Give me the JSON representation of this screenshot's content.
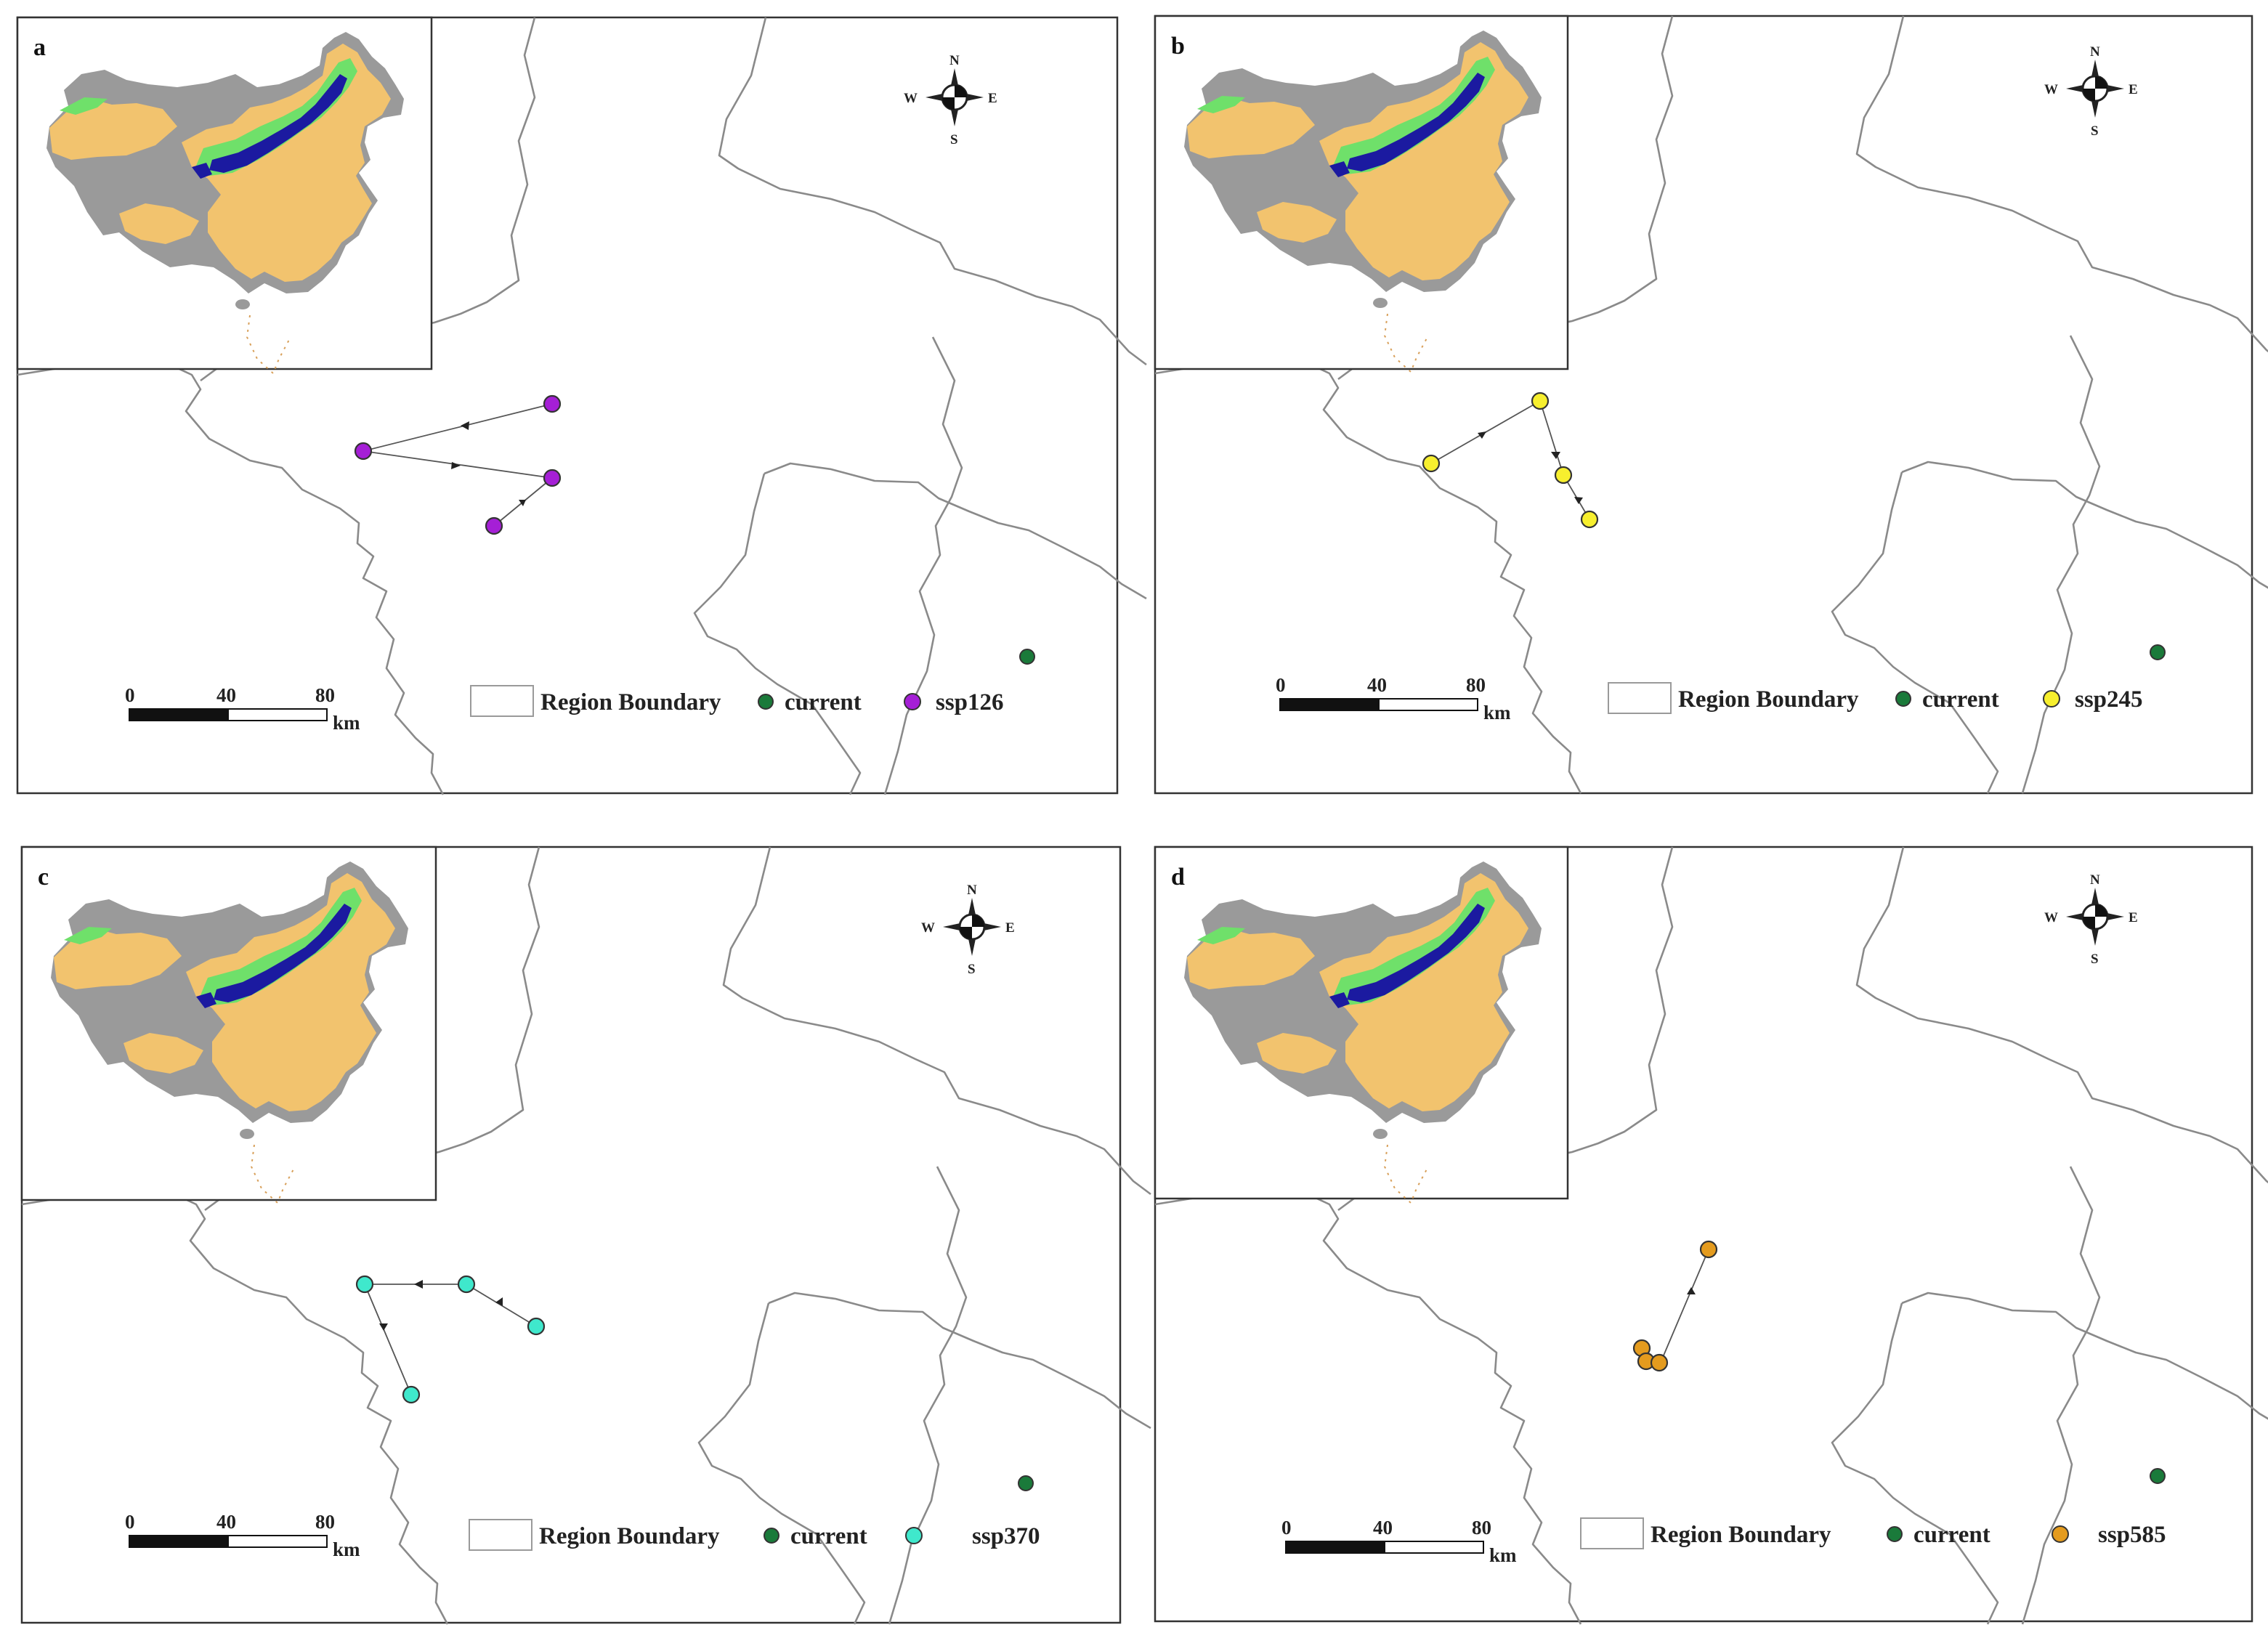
{
  "figure": {
    "panels": [
      {
        "id": "a",
        "letter": "a",
        "scenario_label": "ssp126",
        "scenario_color": "#a51fd6",
        "legend": {
          "boundary_label": "Region Boundary",
          "current_label": "current"
        },
        "scale": {
          "ticks": [
            "0",
            "40",
            "80"
          ],
          "unit": "km"
        },
        "compass": {
          "n": "N",
          "s": "S",
          "e": "E",
          "w": "W"
        }
      },
      {
        "id": "b",
        "letter": "b",
        "scenario_label": "ssp245",
        "scenario_color": "#f7ef2e",
        "legend": {
          "boundary_label": "Region Boundary",
          "current_label": "current"
        },
        "scale": {
          "ticks": [
            "0",
            "40",
            "80"
          ],
          "unit": "km"
        },
        "compass": {
          "n": "N",
          "s": "S",
          "e": "E",
          "w": "W"
        }
      },
      {
        "id": "c",
        "letter": "c",
        "scenario_label": "ssp370",
        "scenario_color": "#3fe8cc",
        "legend": {
          "boundary_label": "Region Boundary",
          "current_label": "current"
        },
        "scale": {
          "ticks": [
            "0",
            "40",
            "80"
          ],
          "unit": "km"
        },
        "compass": {
          "n": "N",
          "s": "S",
          "e": "E",
          "w": "W"
        }
      },
      {
        "id": "d",
        "letter": "d",
        "scenario_label": "ssp585",
        "scenario_color": "#e49b1e",
        "legend": {
          "boundary_label": "Region Boundary",
          "current_label": "current"
        },
        "scale": {
          "ticks": [
            "0",
            "40",
            "80"
          ],
          "unit": "km"
        },
        "compass": {
          "n": "N",
          "s": "S",
          "e": "E",
          "w": "W"
        }
      }
    ],
    "colors": {
      "current": "#1a7a3a",
      "boundary": "#8a8a8a",
      "inset_suitable_low": "#f2c36e",
      "inset_suitable_mid": "#6fe06a",
      "inset_suitable_high": "#1b1aa0",
      "inset_unsuitable": "#9a9a9a"
    }
  }
}
